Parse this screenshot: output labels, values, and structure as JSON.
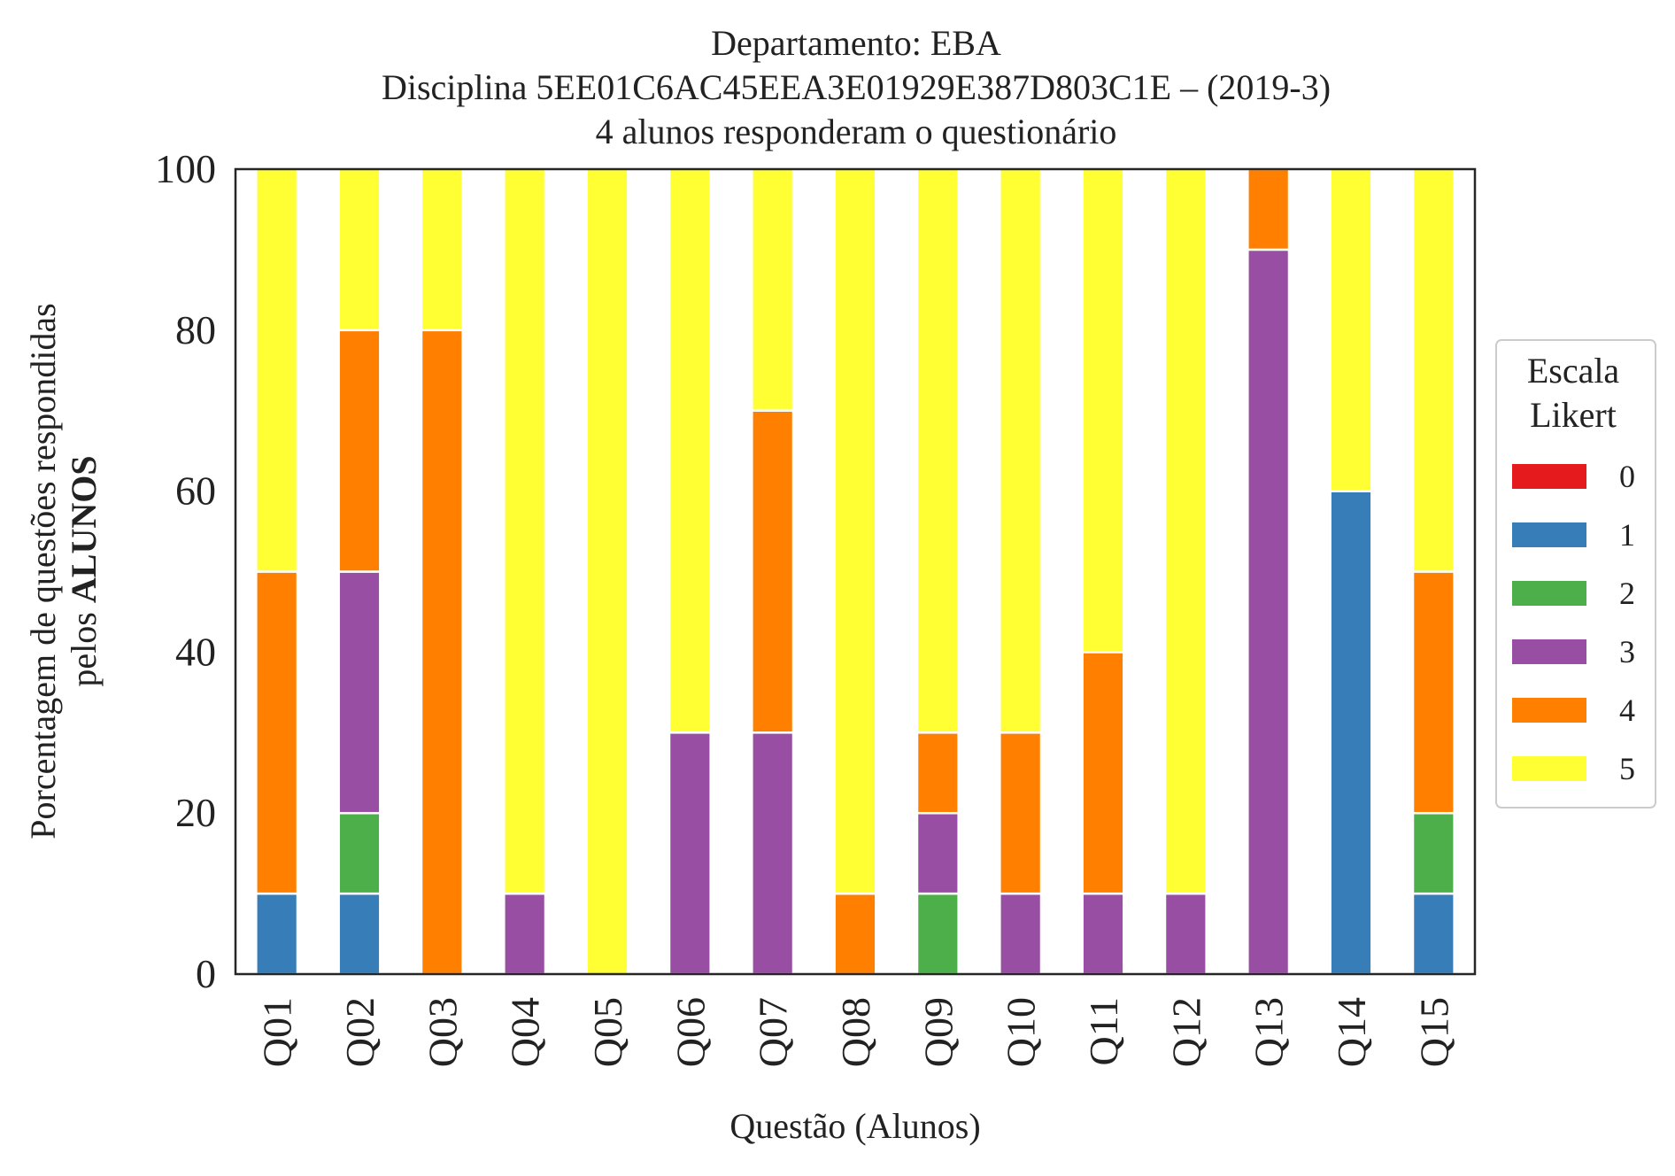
{
  "chart_data": {
    "type": "bar",
    "stacked": true,
    "title_lines": [
      "Departamento: EBA",
      "Disciplina 5EE01C6AC45EEA3E01929E387D803C1E – (2019-3)",
      "4 alunos responderam o questionário"
    ],
    "xlabel": "Questão (Alunos)",
    "ylabel_line1": "Porcentagem de questões respondidas",
    "ylabel_line2_prefix": "pelos ",
    "ylabel_line2_bold": "ALUNOS",
    "ylim": [
      0,
      100
    ],
    "yticks": [
      "0",
      "20",
      "40",
      "60",
      "80",
      "100"
    ],
    "grid": false,
    "legend_position": "right, outside plot",
    "legend_title_lines": [
      "Escala",
      "Likert"
    ],
    "categories": [
      "Q01",
      "Q02",
      "Q03",
      "Q04",
      "Q05",
      "Q06",
      "Q07",
      "Q08",
      "Q09",
      "Q10",
      "Q11",
      "Q12",
      "Q13",
      "Q14",
      "Q15"
    ],
    "series": [
      {
        "name": "0",
        "color": "#e41a1c",
        "values": [
          0,
          0,
          0,
          0,
          0,
          0,
          0,
          0,
          0,
          0,
          0,
          0,
          0,
          0,
          0
        ]
      },
      {
        "name": "1",
        "color": "#377eb8",
        "values": [
          10,
          10,
          0,
          0,
          0,
          0,
          0,
          0,
          0,
          0,
          0,
          0,
          0,
          60,
          10
        ]
      },
      {
        "name": "2",
        "color": "#4daf4a",
        "values": [
          0,
          10,
          0,
          0,
          0,
          0,
          0,
          0,
          10,
          0,
          0,
          0,
          0,
          0,
          10
        ]
      },
      {
        "name": "3",
        "color": "#984ea3",
        "values": [
          0,
          30,
          0,
          10,
          0,
          30,
          30,
          0,
          10,
          10,
          10,
          10,
          90,
          0,
          0
        ]
      },
      {
        "name": "4",
        "color": "#ff7f00",
        "values": [
          40,
          30,
          80,
          0,
          0,
          0,
          40,
          10,
          10,
          20,
          30,
          0,
          10,
          0,
          30
        ]
      },
      {
        "name": "5",
        "color": "#ffff33",
        "values": [
          50,
          20,
          20,
          90,
          100,
          70,
          30,
          90,
          70,
          70,
          60,
          90,
          0,
          40,
          50
        ]
      }
    ]
  }
}
